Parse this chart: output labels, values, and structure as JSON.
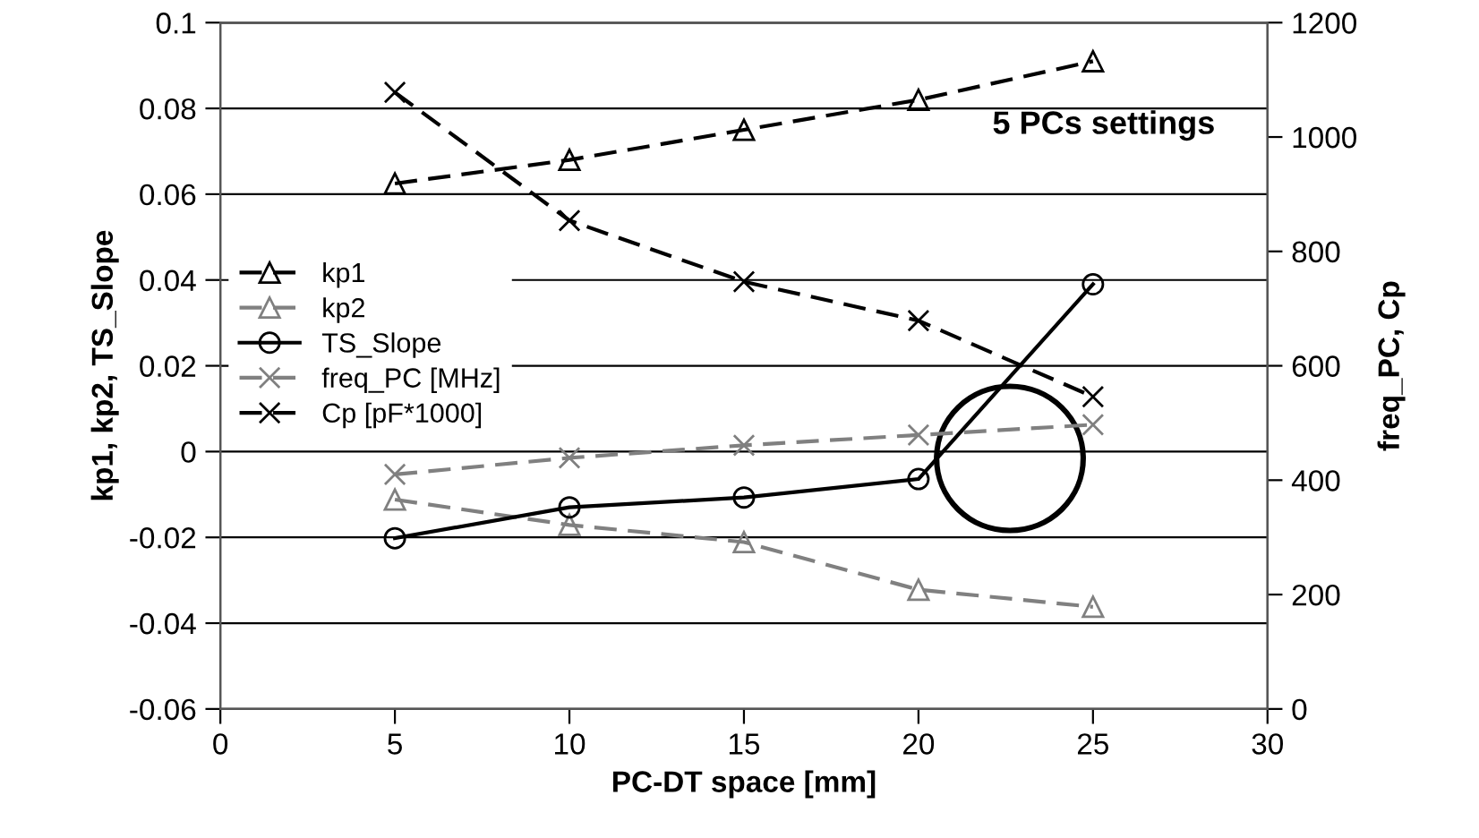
{
  "chart_data": {
    "type": "line",
    "xlabel": "PC-DT space [mm]",
    "ylabel": "kp1, kp2, TS_Slope",
    "y2label": "freq_PC, Cp",
    "x": [
      5,
      10,
      15,
      20,
      25
    ],
    "series": [
      {
        "name": "kp1",
        "color": "#000000",
        "marker": "triangle",
        "line_style": "dashed",
        "values": [
          0.0625,
          0.068,
          0.075,
          0.082,
          0.091
        ]
      },
      {
        "name": "kp2",
        "color": "#808080",
        "marker": "triangle",
        "line_style": "dashed",
        "values": [
          -0.0112,
          -0.0171,
          -0.0211,
          -0.0322,
          -0.0362
        ]
      },
      {
        "name": "TS_Slope",
        "color": "#000000",
        "marker": "circle",
        "line_style": "solid",
        "values": [
          -0.0202,
          -0.013,
          -0.0107,
          -0.0064,
          0.039
        ]
      },
      {
        "name": "freq_PC [MHz]",
        "color": "#808080",
        "marker": "cross",
        "line_style": "dashed",
        "axis": "y2",
        "values": [
          410,
          439,
          461,
          479,
          497
        ]
      },
      {
        "name": "Cp [pF*1000]",
        "color": "#000000",
        "marker": "cross",
        "line_style": "dashed",
        "axis": "y2",
        "values": [
          1078,
          854,
          747,
          679,
          546
        ]
      }
    ],
    "xlim": [
      0,
      30
    ],
    "xticks": [
      0,
      5,
      10,
      15,
      20,
      25,
      30
    ],
    "ylim": [
      -0.06,
      0.1
    ],
    "yticks": [
      -0.06,
      -0.04,
      -0.02,
      0,
      0.02,
      0.04,
      0.06,
      0.08,
      0.1
    ],
    "y2lim": [
      0,
      1200
    ],
    "y2ticks": [
      0,
      200,
      400,
      600,
      800,
      1000,
      1200
    ],
    "grid": "y",
    "legend": "left",
    "annotations": [
      "5 PCs settings"
    ]
  }
}
